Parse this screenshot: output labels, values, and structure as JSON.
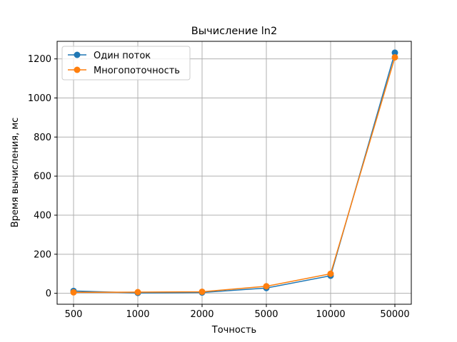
{
  "chart_data": {
    "type": "line",
    "title": "Вычисление ln2",
    "xlabel": "Точность",
    "ylabel": "Время вычисления, мс",
    "categories": [
      "500",
      "1000",
      "2000",
      "5000",
      "10000",
      "50000"
    ],
    "yticks": [
      "0",
      "200",
      "400",
      "600",
      "800",
      "1000",
      "1200"
    ],
    "ylim": [
      -56,
      1290
    ],
    "grid": true,
    "legend_position": "top-left",
    "series": [
      {
        "name": "Один поток",
        "color": "#1f77b4",
        "values": [
          12,
          2,
          4,
          27,
          90,
          1232
        ]
      },
      {
        "name": "Многопоточность",
        "color": "#ff7f0e",
        "values": [
          5,
          6,
          8,
          36,
          100,
          1208
        ]
      }
    ]
  }
}
